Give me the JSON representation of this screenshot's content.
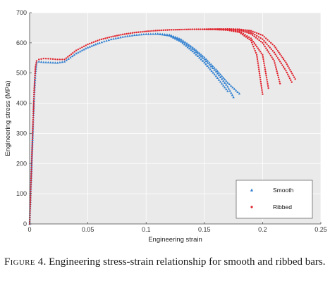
{
  "caption": {
    "label": "Figure 4",
    "text": ". Engineering stress-strain relationship for smooth and ribbed bars."
  },
  "chart_data": {
    "type": "scatter",
    "title": "",
    "xlabel": "Engineering strain",
    "ylabel": "Engineering stress (MPa)",
    "xlim": [
      0,
      0.25
    ],
    "ylim": [
      0,
      700
    ],
    "xticks": [
      0,
      0.05,
      0.1,
      0.15,
      0.2,
      0.25
    ],
    "xtick_labels": [
      "0",
      "0.05",
      "0.1",
      "0.15",
      "0.2",
      "0.25"
    ],
    "yticks": [
      0,
      100,
      200,
      300,
      400,
      500,
      600,
      700
    ],
    "ytick_labels": [
      "0",
      "100",
      "200",
      "300",
      "400",
      "500",
      "600",
      "700"
    ],
    "grid": true,
    "legend_position": "bottom-right",
    "background": "#eaeaea",
    "series": [
      {
        "name": "Smooth",
        "marker": "triangle",
        "color": "#2f7fd0",
        "curves": [
          {
            "x": [
              0,
              0.001,
              0.002,
              0.003,
              0.004,
              0.005,
              0.006,
              0.008,
              0.012,
              0.018,
              0.024,
              0.03,
              0.04,
              0.05,
              0.06,
              0.07,
              0.08,
              0.09,
              0.1,
              0.11,
              0.12,
              0.13,
              0.14,
              0.15,
              0.16,
              0.17,
              0.175
            ],
            "y": [
              0,
              110,
              220,
              330,
              430,
              500,
              535,
              538,
              536,
              535,
              534,
              538,
              565,
              585,
              600,
              612,
              620,
              626,
              629,
              630,
              626,
              608,
              580,
              545,
              505,
              455,
              420
            ]
          },
          {
            "x": [
              0.11,
              0.12,
              0.13,
              0.14,
              0.15,
              0.16,
              0.17,
              0.18
            ],
            "y": [
              630,
              627,
              612,
              585,
              552,
              512,
              468,
              432
            ]
          },
          {
            "x": [
              0.11,
              0.12,
              0.13,
              0.14,
              0.15,
              0.16,
              0.165,
              0.17
            ],
            "y": [
              630,
              624,
              604,
              572,
              535,
              490,
              465,
              440
            ]
          }
        ]
      },
      {
        "name": "Ribbed",
        "marker": "dot",
        "color": "#e0202a",
        "curves": [
          {
            "x": [
              0,
              0.001,
              0.002,
              0.003,
              0.004,
              0.005,
              0.006,
              0.008,
              0.012,
              0.018,
              0.024,
              0.03,
              0.04,
              0.05,
              0.06,
              0.07,
              0.08,
              0.09,
              0.1,
              0.11,
              0.12,
              0.13,
              0.14,
              0.15,
              0.16,
              0.17,
              0.18,
              0.19,
              0.195,
              0.2
            ],
            "y": [
              0,
              115,
              230,
              345,
              450,
              520,
              540,
              545,
              548,
              547,
              545,
              545,
              575,
              595,
              610,
              620,
              628,
              634,
              638,
              641,
              643,
              644,
              645,
              645,
              644,
              642,
              635,
              608,
              560,
              430
            ]
          },
          {
            "x": [
              0.15,
              0.16,
              0.17,
              0.18,
              0.19,
              0.2,
              0.205
            ],
            "y": [
              645,
              645,
              644,
              638,
              615,
              560,
              450
            ]
          },
          {
            "x": [
              0.15,
              0.16,
              0.17,
              0.18,
              0.19,
              0.2,
              0.21,
              0.215
            ],
            "y": [
              645,
              645,
              645,
              642,
              630,
              600,
              540,
              465
            ]
          },
          {
            "x": [
              0.15,
              0.16,
              0.17,
              0.18,
              0.19,
              0.2,
              0.21,
              0.22,
              0.225
            ],
            "y": [
              645,
              645,
              645,
              644,
              635,
              612,
              568,
              508,
              470
            ]
          },
          {
            "x": [
              0.15,
              0.16,
              0.17,
              0.18,
              0.19,
              0.2,
              0.21,
              0.22,
              0.228
            ],
            "y": [
              645,
              646,
              646,
              645,
              640,
              625,
              590,
              535,
              480
            ]
          }
        ]
      }
    ]
  }
}
